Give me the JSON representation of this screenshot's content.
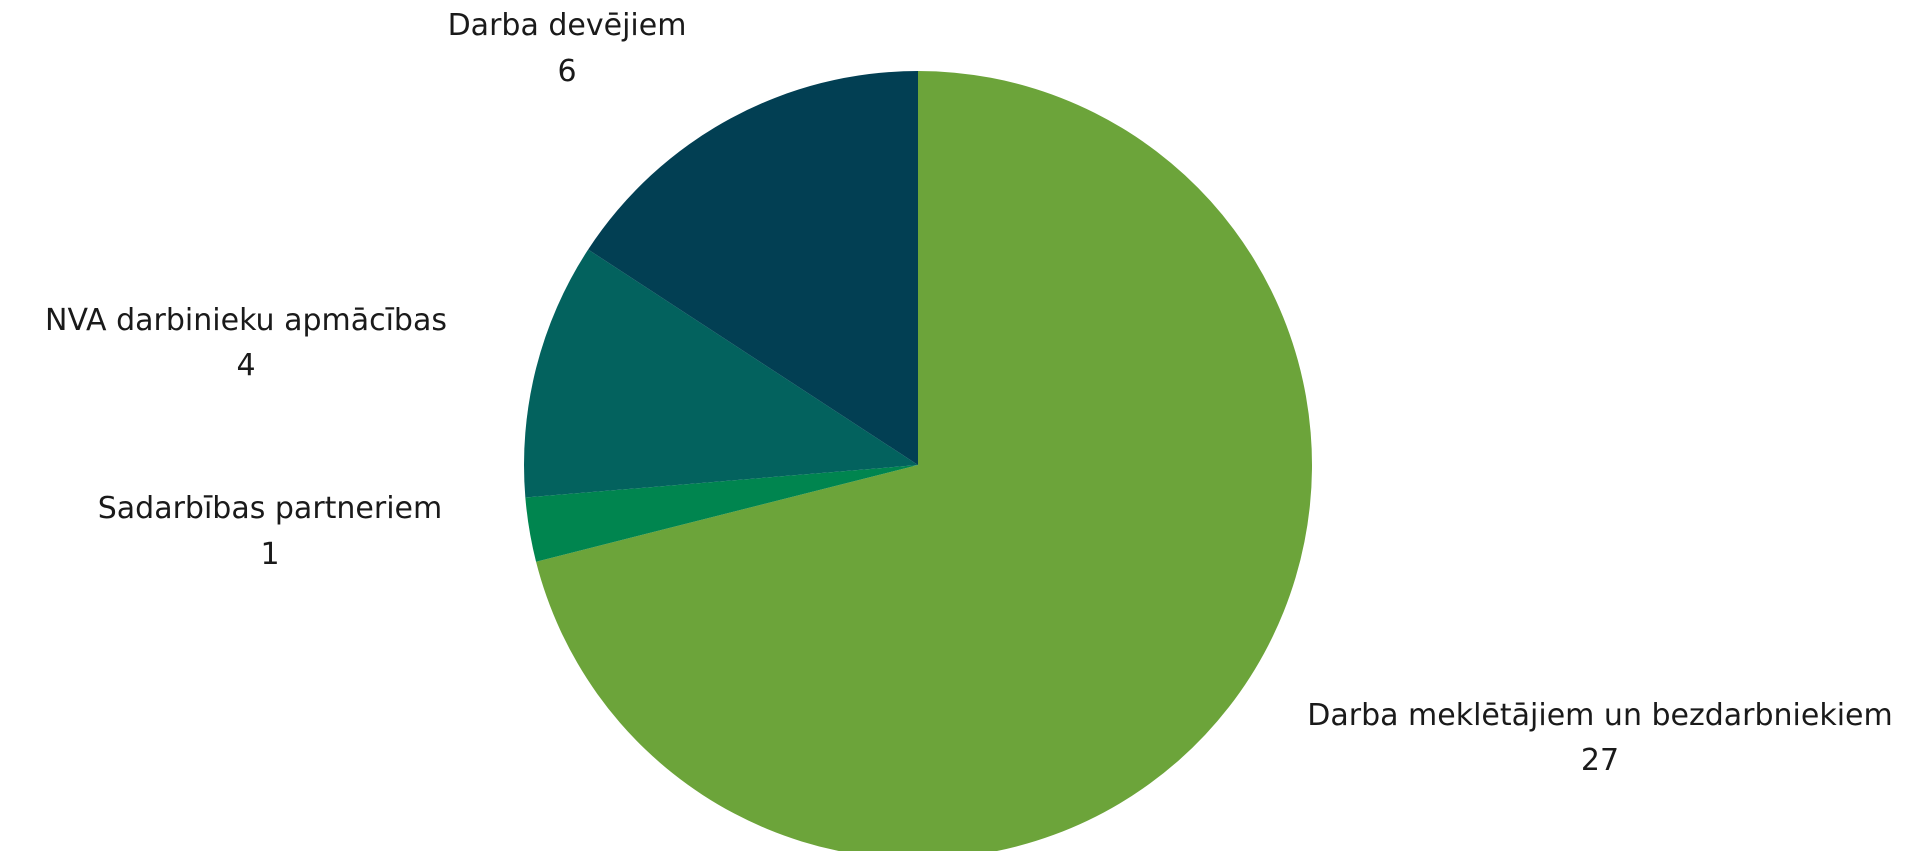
{
  "chart_data": {
    "type": "pie",
    "title": "",
    "start_angle_deg": 0,
    "direction": "clockwise",
    "slices": [
      {
        "label": "Darba meklētājiem un bezdarbniekiem",
        "value": 27,
        "color": "#6ca43a"
      },
      {
        "label": "Sadarbības partneriem",
        "value": 1,
        "color": "#00854f"
      },
      {
        "label": "NVA darbinieku apmācības",
        "value": 4,
        "color": "#03625e"
      },
      {
        "label": "Darba devējiem",
        "value": 6,
        "color": "#023f53"
      }
    ],
    "legend": "none",
    "data_labels": "category-and-value, outside"
  }
}
